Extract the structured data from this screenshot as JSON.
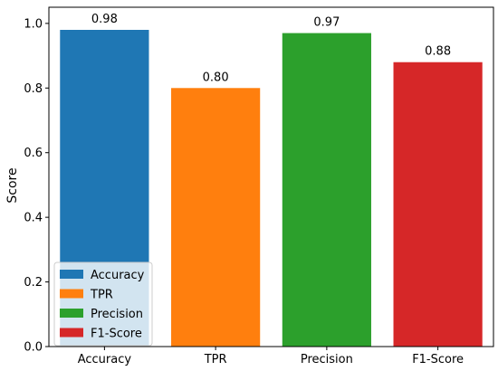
{
  "chart_data": {
    "type": "bar",
    "categories": [
      "Accuracy",
      "TPR",
      "Precision",
      "F1-Score"
    ],
    "values": [
      0.98,
      0.8,
      0.97,
      0.88
    ],
    "value_labels": [
      "0.98",
      "0.80",
      "0.97",
      "0.88"
    ],
    "colors": [
      "#1f77b4",
      "#ff7f0e",
      "#2ca02c",
      "#d62728"
    ],
    "title": "",
    "xlabel": "",
    "ylabel": "Score",
    "ylim": [
      0,
      1.05
    ],
    "yticks": [
      0.0,
      0.2,
      0.4,
      0.6,
      0.8,
      1.0
    ],
    "ytick_labels": [
      "0.0",
      "0.2",
      "0.4",
      "0.6",
      "0.8",
      "1.0"
    ],
    "grid": false,
    "legend": {
      "placement": "lower-left",
      "entries": [
        "Accuracy",
        "TPR",
        "Precision",
        "F1-Score"
      ]
    }
  }
}
